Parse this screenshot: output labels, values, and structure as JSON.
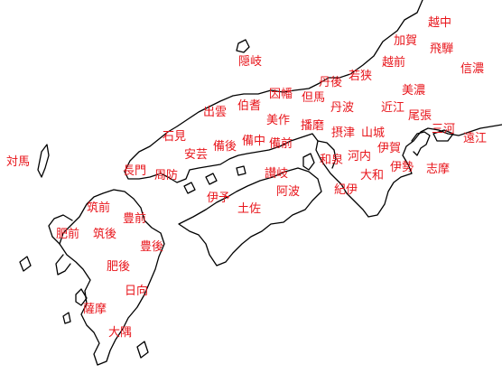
{
  "map": {
    "label_color": "#e8151b",
    "line_color": "#000000",
    "background": "#ffffff",
    "provinces": [
      {
        "id": "ecchu",
        "name": "越中"
      },
      {
        "id": "kaga",
        "name": "加賀"
      },
      {
        "id": "hida",
        "name": "飛騨"
      },
      {
        "id": "echizen",
        "name": "越前"
      },
      {
        "id": "shinano",
        "name": "信濃"
      },
      {
        "id": "oki",
        "name": "隠岐"
      },
      {
        "id": "wakasa",
        "name": "若狭"
      },
      {
        "id": "tango",
        "name": "丹後"
      },
      {
        "id": "mino",
        "name": "美濃"
      },
      {
        "id": "inaba",
        "name": "因幡"
      },
      {
        "id": "tajima",
        "name": "但馬"
      },
      {
        "id": "hoki",
        "name": "伯耆"
      },
      {
        "id": "izumo",
        "name": "出雲"
      },
      {
        "id": "tanba",
        "name": "丹波"
      },
      {
        "id": "omi",
        "name": "近江"
      },
      {
        "id": "owari",
        "name": "尾張"
      },
      {
        "id": "mimasaka",
        "name": "美作"
      },
      {
        "id": "harima",
        "name": "播磨"
      },
      {
        "id": "mikawa",
        "name": "三河"
      },
      {
        "id": "iwami",
        "name": "石見"
      },
      {
        "id": "bingo",
        "name": "備後"
      },
      {
        "id": "bitchu",
        "name": "備中"
      },
      {
        "id": "bizen",
        "name": "備前"
      },
      {
        "id": "settsu",
        "name": "摂津"
      },
      {
        "id": "yamashiro",
        "name": "山城"
      },
      {
        "id": "totomi",
        "name": "遠江"
      },
      {
        "id": "iga",
        "name": "伊賀"
      },
      {
        "id": "aki",
        "name": "安芸"
      },
      {
        "id": "izumi",
        "name": "和泉"
      },
      {
        "id": "kawachi",
        "name": "河内"
      },
      {
        "id": "tsushima",
        "name": "対馬"
      },
      {
        "id": "nagato",
        "name": "長門"
      },
      {
        "id": "suo",
        "name": "周防"
      },
      {
        "id": "sanuki",
        "name": "讃岐"
      },
      {
        "id": "ise",
        "name": "伊勢"
      },
      {
        "id": "shima",
        "name": "志摩"
      },
      {
        "id": "yamato",
        "name": "大和"
      },
      {
        "id": "iyo",
        "name": "伊予"
      },
      {
        "id": "awa",
        "name": "阿波"
      },
      {
        "id": "kii",
        "name": "紀伊"
      },
      {
        "id": "chikuzen",
        "name": "筑前"
      },
      {
        "id": "tosa",
        "name": "土佐"
      },
      {
        "id": "buzen",
        "name": "豊前"
      },
      {
        "id": "hizen",
        "name": "肥前"
      },
      {
        "id": "chikugo",
        "name": "筑後"
      },
      {
        "id": "bungo",
        "name": "豊後"
      },
      {
        "id": "higo",
        "name": "肥後"
      },
      {
        "id": "hyuga",
        "name": "日向"
      },
      {
        "id": "satsuma",
        "name": "薩摩"
      },
      {
        "id": "osumi",
        "name": "大隅"
      }
    ]
  }
}
